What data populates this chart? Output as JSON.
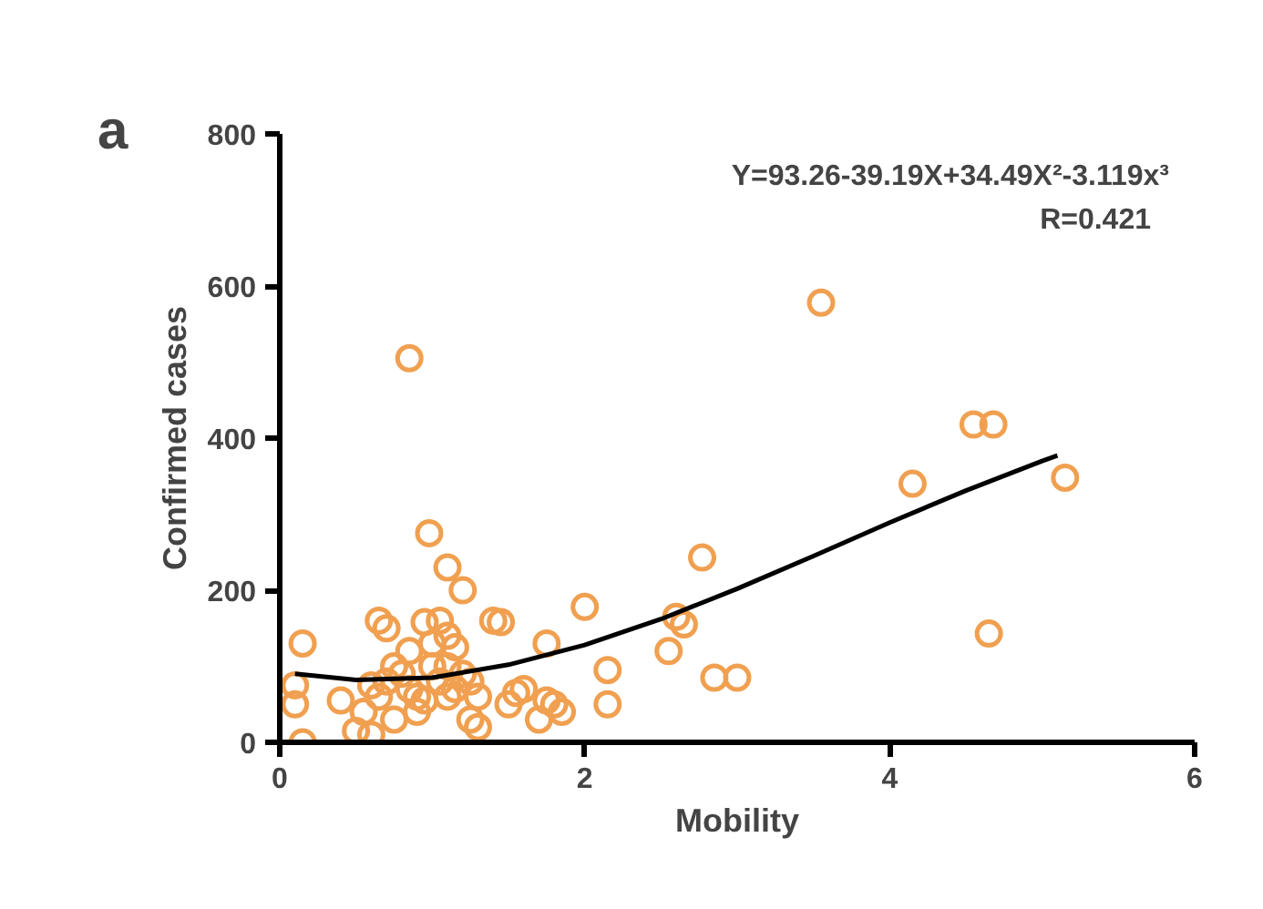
{
  "chart_data": {
    "type": "scatter",
    "xlabel": "Mobility",
    "ylabel": "Confirmed cases",
    "xlim": [
      0,
      6
    ],
    "ylim": [
      0,
      800
    ],
    "xticks": [
      0,
      2,
      4,
      6
    ],
    "yticks": [
      0,
      200,
      400,
      600,
      800
    ],
    "grid": false,
    "marker": "circle",
    "annotations": [
      "a",
      "Y=93.26-39.19X+34.49X²-3.119x³",
      "R=0.421"
    ],
    "series": [
      {
        "color": "#f0a050",
        "x": [
          0.1,
          0.1,
          0.15,
          0.15,
          0.85,
          3.55,
          4.55,
          4.68,
          4.15,
          5.15,
          4.65,
          0.98,
          1.1,
          1.2,
          2.77,
          2.0,
          2.6,
          2.65,
          2.55,
          2.85,
          3.0,
          2.15,
          2.15,
          1.75,
          1.4,
          1.45,
          0.65,
          0.7,
          0.95,
          1.05,
          1.1,
          1.15,
          0.4,
          0.5,
          0.6,
          0.65,
          0.7,
          0.75,
          0.8,
          0.85,
          0.9,
          0.95,
          1.0,
          1.05,
          1.1,
          1.15,
          1.2,
          1.25,
          1.3,
          1.25,
          1.3,
          1.5,
          1.55,
          1.6,
          1.7,
          1.75,
          1.8,
          1.85,
          0.55,
          0.75,
          0.85,
          1.0,
          1.1,
          0.6,
          0.9
        ],
        "values": [
          75,
          50,
          130,
          0,
          505,
          578,
          418,
          418,
          340,
          348,
          143,
          275,
          230,
          200,
          243,
          178,
          165,
          155,
          120,
          85,
          85,
          95,
          50,
          130,
          160,
          158,
          160,
          150,
          158,
          160,
          140,
          125,
          55,
          15,
          10,
          60,
          80,
          100,
          90,
          70,
          40,
          55,
          100,
          80,
          60,
          70,
          90,
          80,
          60,
          30,
          20,
          50,
          65,
          70,
          30,
          55,
          50,
          40,
          40,
          30,
          120,
          130,
          100,
          75,
          60
        ]
      },
      {
        "type": "line",
        "color": "#000000",
        "line_style": "solid",
        "marker": "none",
        "x": [
          0.1,
          0.5,
          1,
          1.5,
          2,
          2.5,
          3,
          3.5,
          4,
          4.5,
          5,
          5.1
        ],
        "values": [
          90,
          82,
          85,
          102,
          128,
          162,
          202,
          245,
          289,
          331,
          370,
          377
        ]
      }
    ]
  }
}
